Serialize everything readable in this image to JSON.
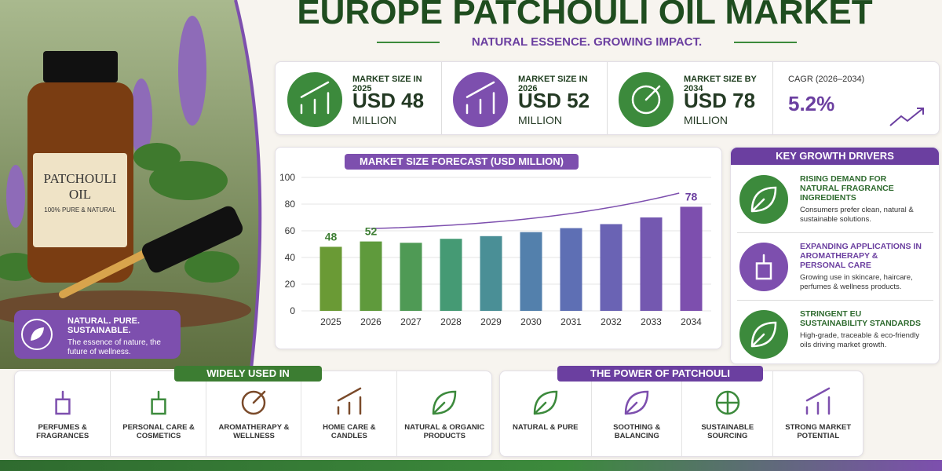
{
  "title": "EUROPE PATCHOULI OIL MARKET",
  "subtitle": "NATURAL ESSENCE. GROWING IMPACT.",
  "bottle": {
    "label": "PATCHOULI OIL",
    "tagline": "100% PURE & NATURAL"
  },
  "badge": {
    "title": "NATURAL. PURE. SUSTAINABLE.",
    "text": "The essence of nature, the future of wellness."
  },
  "stats": [
    {
      "label": "MARKET SIZE IN 2025",
      "value": "USD 48",
      "unit": "MILLION"
    },
    {
      "label": "MARKET SIZE IN 2026",
      "value": "USD 52",
      "unit": "MILLION"
    },
    {
      "label": "MARKET SIZE BY 2034",
      "value": "USD 78",
      "unit": "MILLION"
    },
    {
      "label": "CAGR (2026–2034)",
      "value": "5.2%"
    }
  ],
  "chart_data": {
    "type": "bar",
    "title": "MARKET SIZE FORECAST (USD MILLION)",
    "categories": [
      "2025",
      "2026",
      "2027",
      "2028",
      "2029",
      "2030",
      "2031",
      "2032",
      "2033",
      "2034"
    ],
    "values": [
      48,
      52,
      51,
      54,
      56,
      59,
      62,
      65,
      70,
      78
    ],
    "value_labels": [
      "48",
      "52",
      null,
      null,
      null,
      null,
      null,
      null,
      null,
      "78"
    ],
    "colors": [
      "#6a9a35",
      "#5f9a3c",
      "#4f9a55",
      "#459a74",
      "#4a8f96",
      "#5380ac",
      "#5e6fb4",
      "#6a63b4",
      "#7458b0",
      "#7d4fae"
    ],
    "ylim": [
      0,
      100
    ],
    "yticks": [
      0,
      20,
      40,
      60,
      80,
      100
    ],
    "grid": true
  },
  "drivers": {
    "title": "KEY GROWTH DRIVERS",
    "items": [
      {
        "title": "RISING DEMAND FOR NATURAL FRAGRANCE INGREDIENTS",
        "text": "Consumers prefer clean, natural & sustainable solutions."
      },
      {
        "title": "EXPANDING APPLICATIONS IN AROMATHERAPY & PERSONAL CARE",
        "text": "Growing use in skincare, haircare, perfumes & wellness products."
      },
      {
        "title": "STRINGENT EU SUSTAINABILITY STANDARDS",
        "text": "High-grade, traceable & eco-friendly oils driving market growth."
      }
    ]
  },
  "uses": {
    "title": "WIDELY USED IN",
    "items": [
      "PERFUMES & FRAGRANCES",
      "PERSONAL CARE & COSMETICS",
      "AROMATHERAPY & WELLNESS",
      "HOME CARE & CANDLES",
      "NATURAL & ORGANIC PRODUCTS"
    ]
  },
  "power": {
    "title": "THE POWER OF PATCHOULI",
    "items": [
      "NATURAL & PURE",
      "SOOTHING & BALANCING",
      "SUSTAINABLE SOURCING",
      "STRONG MARKET POTENTIAL"
    ]
  }
}
